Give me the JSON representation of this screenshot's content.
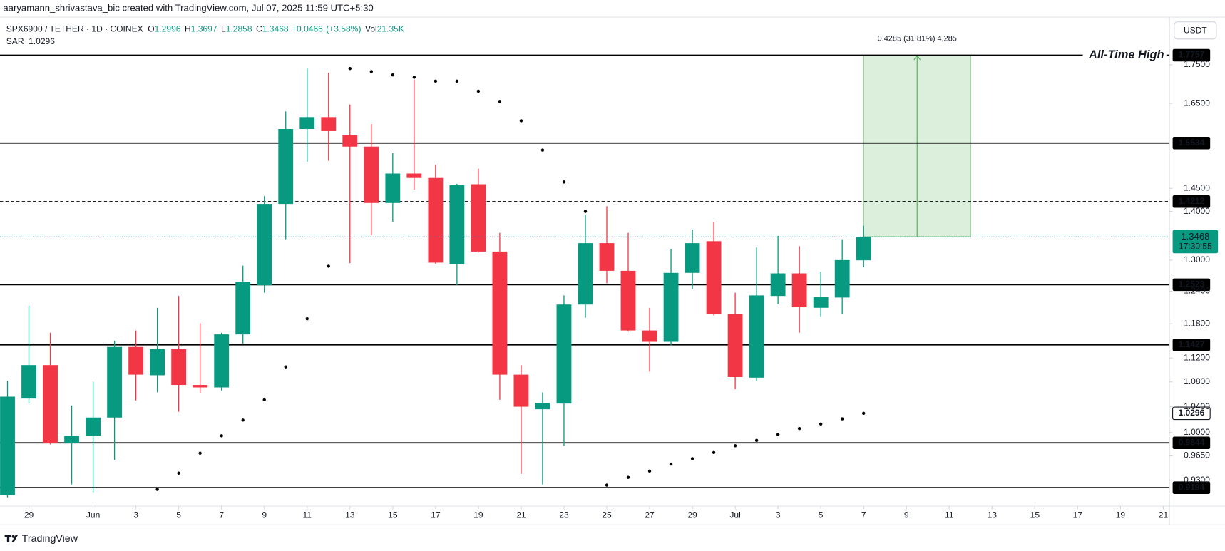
{
  "header": {
    "credit": "aaryamann_shrivastava_bic created with TradingView.com, Jul 07, 2025 11:59 UTC+5:30",
    "symbol": "SPX6900 / TETHER · 1D · COINEX",
    "currency": "USDT",
    "brand": "TradingView"
  },
  "chart_data": {
    "type": "candlestick",
    "x": [
      "2025-05-28",
      "2025-05-29",
      "2025-05-30",
      "2025-05-31",
      "2025-06-01",
      "2025-06-02",
      "2025-06-03",
      "2025-06-04",
      "2025-06-05",
      "2025-06-06",
      "2025-06-07",
      "2025-06-08",
      "2025-06-09",
      "2025-06-10",
      "2025-06-11",
      "2025-06-12",
      "2025-06-13",
      "2025-06-14",
      "2025-06-15",
      "2025-06-16",
      "2025-06-17",
      "2025-06-18",
      "2025-06-19",
      "2025-06-20",
      "2025-06-21",
      "2025-06-22",
      "2025-06-23",
      "2025-06-24",
      "2025-06-25",
      "2025-06-26",
      "2025-06-27",
      "2025-06-28",
      "2025-06-29",
      "2025-06-30",
      "2025-07-01",
      "2025-07-02",
      "2025-07-03",
      "2025-07-04",
      "2025-07-05",
      "2025-07-06",
      "2025-07-07"
    ],
    "open": [
      0.909,
      1.053,
      1.108,
      0.984,
      0.995,
      1.023,
      1.139,
      1.091,
      1.135,
      1.075,
      1.071,
      1.161,
      1.251,
      1.416,
      1.587,
      1.616,
      1.572,
      1.545,
      1.418,
      1.483,
      1.473,
      1.292,
      1.459,
      1.317,
      1.092,
      1.036,
      1.045,
      1.215,
      1.334,
      1.279,
      1.168,
      1.148,
      1.275,
      1.338,
      1.198,
      1.087,
      1.231,
      1.274,
      1.209,
      1.228,
      1.2996
    ],
    "high": [
      1.082,
      1.213,
      1.164,
      1.042,
      1.08,
      1.15,
      1.168,
      1.209,
      1.231,
      1.181,
      1.164,
      1.289,
      1.433,
      1.63,
      1.74,
      1.729,
      1.647,
      1.599,
      1.53,
      1.711,
      1.503,
      1.46,
      1.494,
      1.355,
      1.108,
      1.063,
      1.232,
      1.393,
      1.411,
      1.355,
      1.209,
      1.322,
      1.362,
      1.378,
      1.237,
      1.325,
      1.349,
      1.328,
      1.277,
      1.342,
      1.3697
    ],
    "low": [
      0.906,
      1.045,
      0.982,
      0.924,
      0.913,
      0.959,
      1.05,
      1.063,
      1.032,
      1.062,
      1.066,
      1.145,
      1.237,
      1.342,
      1.51,
      1.512,
      1.294,
      1.35,
      1.378,
      1.447,
      1.293,
      1.251,
      1.315,
      1.051,
      0.939,
      0.924,
      0.98,
      1.191,
      1.255,
      1.166,
      1.097,
      1.142,
      1.244,
      1.195,
      1.068,
      1.082,
      1.216,
      1.164,
      1.192,
      1.198,
      1.2858
    ],
    "close": [
      1.056,
      1.108,
      0.984,
      0.995,
      1.023,
      1.139,
      1.092,
      1.135,
      1.075,
      1.071,
      1.161,
      1.258,
      1.416,
      1.587,
      1.616,
      1.582,
      1.545,
      1.418,
      1.483,
      1.473,
      1.295,
      1.457,
      1.317,
      1.092,
      1.04,
      1.046,
      1.215,
      1.334,
      1.279,
      1.168,
      1.148,
      1.275,
      1.334,
      1.198,
      1.088,
      1.232,
      1.274,
      1.21,
      1.229,
      1.3,
      1.3468
    ],
    "up_color": "#089981",
    "down_color": "#f23645",
    "ohlc_labels": [
      "O",
      "H",
      "L",
      "C"
    ],
    "change": {
      "value": 0.0466,
      "label": "+0.0466"
    },
    "change_pct": {
      "value": 3.58,
      "label": "(+3.58%)"
    },
    "volume_label": "Vol",
    "volume": {
      "value": 21350,
      "label": "21.35K"
    },
    "indicators": [
      {
        "name": "SAR",
        "color": "#000000",
        "values": [
          null,
          null,
          null,
          null,
          null,
          null,
          null,
          0.917,
          0.94,
          0.969,
          0.995,
          1.019,
          1.051,
          1.105,
          1.189,
          1.288,
          1.74,
          1.732,
          1.723,
          1.717,
          1.707,
          1.707,
          1.681,
          1.655,
          1.607,
          1.537,
          1.464,
          1.4,
          0.923,
          0.934,
          0.943,
          0.953,
          0.961,
          0.97,
          0.98,
          0.988,
          0.997,
          1.006,
          1.013,
          1.021,
          1.0296
        ]
      }
    ],
    "levels": [
      {
        "value": 1.7757,
        "label": "All-Time High"
      },
      {
        "value": 1.5534
      },
      {
        "value": 1.4212,
        "style": "dashed"
      },
      {
        "value": 1.2523
      },
      {
        "value": 1.1427
      },
      {
        "value": 0.9844
      },
      {
        "value": 0.9194
      }
    ],
    "last_price_countdown": "17:30:55",
    "measure": {
      "x": [
        "2025-07-07",
        "2025-07-12"
      ],
      "from": 1.3472,
      "to": 1.7757,
      "label": "0.4285 (31.81%) 4,285",
      "color": "#4caf50"
    },
    "log_scale": true,
    "grid": false,
    "ylim": [
      0.894,
      1.886
    ],
    "yticks": [
      {
        "value": 0.93,
        "label": "0.9300"
      },
      {
        "value": 0.965,
        "label": "0.9650"
      },
      {
        "value": 1.0,
        "label": "1.0000"
      },
      {
        "value": 1.04,
        "label": "1.0400"
      },
      {
        "value": 1.08,
        "label": "1.0800"
      },
      {
        "value": 1.12,
        "label": "1.1200"
      },
      {
        "value": 1.18,
        "label": "1.1800"
      },
      {
        "value": 1.24,
        "label": "1.2400"
      },
      {
        "value": 1.3,
        "label": "1.3000"
      },
      {
        "value": 1.4,
        "label": "1.4000"
      },
      {
        "value": 1.45,
        "label": "1.4500"
      },
      {
        "value": 1.65,
        "label": "1.6500"
      },
      {
        "value": 1.75,
        "label": "1.7500"
      }
    ],
    "xlim": [
      "2025-05-27",
      "2025-07-22"
    ],
    "xticks": [
      {
        "value": "2025-05-29",
        "label": "29"
      },
      {
        "value": "2025-06-01",
        "label": "Jun"
      },
      {
        "value": "2025-06-03",
        "label": "3"
      },
      {
        "value": "2025-06-05",
        "label": "5"
      },
      {
        "value": "2025-06-07",
        "label": "7"
      },
      {
        "value": "2025-06-09",
        "label": "9"
      },
      {
        "value": "2025-06-11",
        "label": "11"
      },
      {
        "value": "2025-06-13",
        "label": "13"
      },
      {
        "value": "2025-06-15",
        "label": "15"
      },
      {
        "value": "2025-06-17",
        "label": "17"
      },
      {
        "value": "2025-06-19",
        "label": "19"
      },
      {
        "value": "2025-06-21",
        "label": "21"
      },
      {
        "value": "2025-06-23",
        "label": "23"
      },
      {
        "value": "2025-06-25",
        "label": "25"
      },
      {
        "value": "2025-06-27",
        "label": "27"
      },
      {
        "value": "2025-06-29",
        "label": "29"
      },
      {
        "value": "2025-07-01",
        "label": "Jul"
      },
      {
        "value": "2025-07-03",
        "label": "3"
      },
      {
        "value": "2025-07-05",
        "label": "5"
      },
      {
        "value": "2025-07-07",
        "label": "7"
      },
      {
        "value": "2025-07-09",
        "label": "9"
      },
      {
        "value": "2025-07-11",
        "label": "11"
      },
      {
        "value": "2025-07-13",
        "label": "13"
      },
      {
        "value": "2025-07-15",
        "label": "15"
      },
      {
        "value": "2025-07-17",
        "label": "17"
      },
      {
        "value": "2025-07-19",
        "label": "19"
      },
      {
        "value": "2025-07-21",
        "label": "21"
      }
    ]
  }
}
